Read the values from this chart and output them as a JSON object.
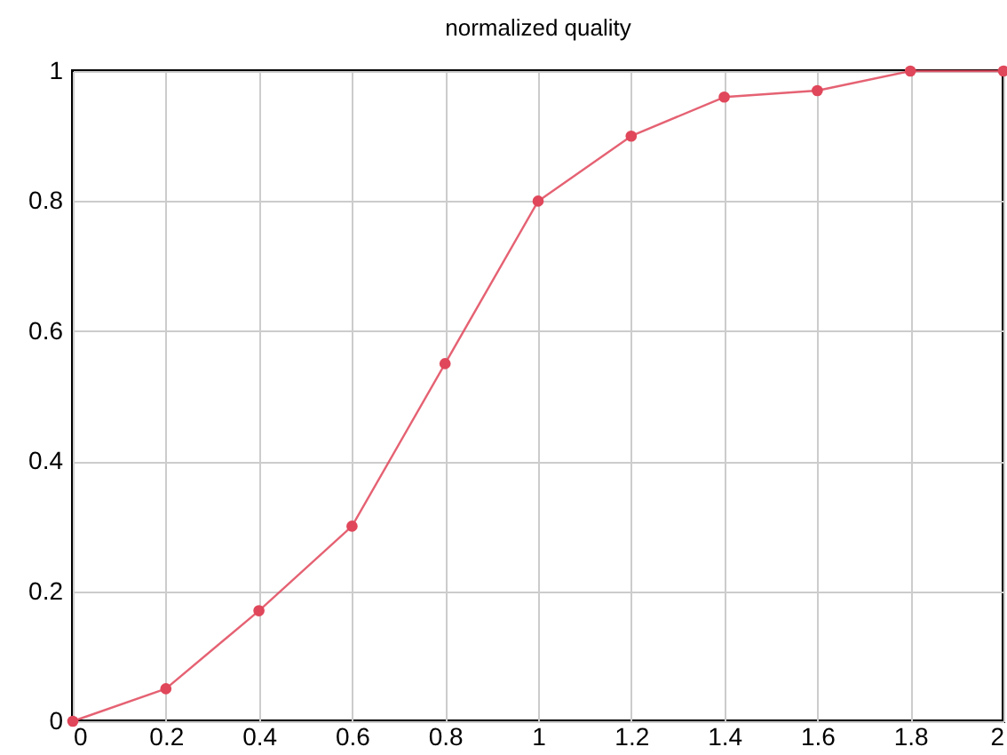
{
  "chart_data": {
    "type": "line",
    "title": "normalized quality",
    "x": [
      0,
      0.2,
      0.4,
      0.6,
      0.8,
      1,
      1.2,
      1.4,
      1.6,
      1.8,
      2
    ],
    "series": [
      {
        "color": "#e0475a",
        "values": [
          0,
          0.05,
          0.17,
          0.3,
          0.55,
          0.8,
          0.9,
          0.96,
          0.97,
          1,
          1
        ]
      }
    ],
    "xlim": [
      0,
      2
    ],
    "xticks": [
      0,
      0.2,
      0.4,
      0.6,
      0.8,
      1,
      1.2,
      1.4,
      1.6,
      1.8,
      2
    ],
    "ylim": [
      0,
      1
    ],
    "yticks": [
      0,
      0.2,
      0.4,
      0.6,
      0.8,
      1
    ],
    "grid": true,
    "marker": "circle",
    "line_style": "solid"
  }
}
